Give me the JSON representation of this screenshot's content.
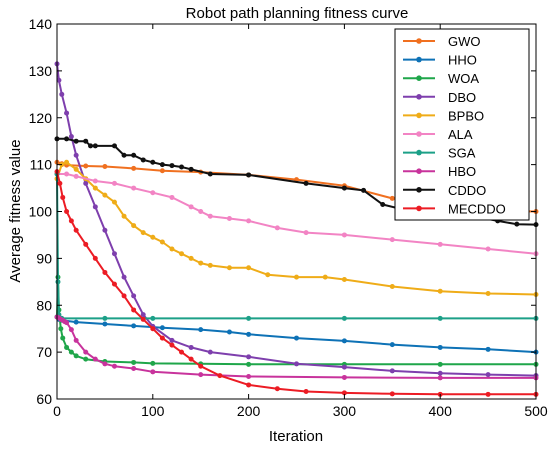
{
  "chart_data": {
    "type": "line",
    "title": "Robot path planning fitness curve",
    "xlabel": "Iteration",
    "ylabel": "Average fitness value",
    "xlim": [
      0,
      500
    ],
    "ylim": [
      60,
      140
    ],
    "xticks": [
      0,
      100,
      200,
      300,
      400,
      500
    ],
    "yticks": [
      60,
      70,
      80,
      90,
      100,
      110,
      120,
      130,
      140
    ],
    "grid": false,
    "legend_position": "top-right",
    "series": [
      {
        "name": "GWO",
        "color": "#f07020",
        "x": [
          0,
          5,
          10,
          30,
          50,
          80,
          110,
          150,
          200,
          250,
          300,
          350,
          400,
          450,
          500
        ],
        "y": [
          110.5,
          110.2,
          109.9,
          109.7,
          109.6,
          109.2,
          108.7,
          108.4,
          107.8,
          106.8,
          105.5,
          102.8,
          101.2,
          100.2,
          100.0
        ]
      },
      {
        "name": "HHO",
        "color": "#0e72b6",
        "x": [
          0,
          2,
          5,
          20,
          50,
          80,
          110,
          150,
          180,
          200,
          250,
          300,
          350,
          400,
          450,
          500
        ],
        "y": [
          77.5,
          77.0,
          76.8,
          76.4,
          76.0,
          75.6,
          75.2,
          74.8,
          74.3,
          73.8,
          73.0,
          72.4,
          71.6,
          71.0,
          70.6,
          70.0
        ]
      },
      {
        "name": "WOA",
        "color": "#1fa64a",
        "x": [
          0,
          1,
          2,
          4,
          6,
          10,
          15,
          20,
          30,
          50,
          80,
          100,
          150,
          200,
          300,
          400,
          500
        ],
        "y": [
          77.5,
          86.0,
          79.0,
          75.0,
          73.0,
          71.0,
          70.0,
          69.2,
          68.5,
          68.0,
          67.8,
          67.6,
          67.5,
          67.4,
          67.4,
          67.4,
          67.4
        ]
      },
      {
        "name": "DBO",
        "color": "#7e3fad",
        "x": [
          0,
          2,
          5,
          10,
          15,
          20,
          30,
          40,
          50,
          60,
          70,
          80,
          90,
          100,
          120,
          140,
          160,
          200,
          250,
          300,
          350,
          400,
          450,
          500
        ],
        "y": [
          131.5,
          128.0,
          125.0,
          121.0,
          116.0,
          112.0,
          106.0,
          101.0,
          96.0,
          91.0,
          86.0,
          82.0,
          78.0,
          75.5,
          72.5,
          71.0,
          70.0,
          69.0,
          67.5,
          66.8,
          66.0,
          65.5,
          65.2,
          65.0
        ]
      },
      {
        "name": "BPBO",
        "color": "#efac18",
        "x": [
          0,
          5,
          10,
          20,
          30,
          40,
          50,
          60,
          70,
          80,
          90,
          100,
          110,
          120,
          130,
          140,
          150,
          160,
          180,
          200,
          220,
          250,
          280,
          300,
          350,
          400,
          450,
          500
        ],
        "y": [
          107.0,
          110.0,
          110.5,
          109.0,
          107.0,
          105.0,
          103.5,
          102.0,
          99.0,
          97.0,
          95.5,
          94.5,
          93.5,
          92.0,
          91.0,
          90.0,
          89.0,
          88.5,
          88.0,
          88.0,
          86.5,
          86.0,
          86.0,
          85.5,
          84.0,
          83.0,
          82.5,
          82.3
        ]
      },
      {
        "name": "ALA",
        "color": "#f284c4",
        "x": [
          0,
          10,
          20,
          40,
          60,
          80,
          100,
          120,
          140,
          150,
          160,
          180,
          200,
          230,
          260,
          300,
          350,
          400,
          450,
          500
        ],
        "y": [
          108.0,
          108.0,
          107.5,
          106.5,
          106.0,
          105.0,
          104.0,
          103.0,
          101.0,
          100.0,
          99.0,
          98.5,
          98.0,
          96.5,
          95.5,
          95.0,
          94.0,
          93.0,
          92.0,
          91.0
        ]
      },
      {
        "name": "SGA",
        "color": "#1ca088",
        "x": [
          0,
          1,
          2,
          3,
          5,
          50,
          100,
          200,
          300,
          400,
          500
        ],
        "y": [
          108.0,
          85.0,
          78.0,
          77.3,
          77.2,
          77.2,
          77.2,
          77.2,
          77.2,
          77.2,
          77.2
        ]
      },
      {
        "name": "HBO",
        "color": "#c8339c",
        "x": [
          0,
          2,
          4,
          6,
          8,
          10,
          15,
          20,
          30,
          40,
          50,
          60,
          80,
          100,
          150,
          200,
          300,
          400,
          500
        ],
        "y": [
          77.5,
          77.3,
          77.0,
          76.8,
          76.5,
          76.3,
          74.8,
          72.5,
          70.0,
          68.5,
          67.5,
          67.0,
          66.5,
          65.8,
          65.2,
          64.8,
          64.6,
          64.5,
          64.5
        ]
      },
      {
        "name": "CDDO",
        "color": "#111111",
        "x": [
          0,
          10,
          20,
          30,
          35,
          40,
          60,
          70,
          80,
          90,
          100,
          110,
          120,
          130,
          140,
          160,
          200,
          260,
          300,
          320,
          340,
          360,
          380,
          400,
          420,
          440,
          460,
          480,
          500
        ],
        "y": [
          115.5,
          115.5,
          115.0,
          115.0,
          114.0,
          114.0,
          114.0,
          112.0,
          112.0,
          111.0,
          110.5,
          110.0,
          109.8,
          109.5,
          109.0,
          108.0,
          107.8,
          106.0,
          105.0,
          104.5,
          101.5,
          100.5,
          100.0,
          100.0,
          99.5,
          98.8,
          98.0,
          97.3,
          97.2
        ]
      },
      {
        "name": "MECDDO",
        "color": "#ec1c24",
        "x": [
          0,
          3,
          6,
          10,
          15,
          20,
          30,
          40,
          50,
          60,
          70,
          80,
          90,
          100,
          110,
          120,
          130,
          140,
          150,
          170,
          200,
          230,
          260,
          300,
          350,
          400,
          450,
          500
        ],
        "y": [
          108.5,
          106.0,
          103.0,
          100.0,
          98.0,
          96.0,
          93.0,
          90.0,
          87.0,
          84.5,
          82.0,
          79.0,
          77.0,
          75.0,
          73.0,
          71.5,
          70.0,
          68.5,
          67.0,
          65.0,
          63.0,
          62.2,
          61.6,
          61.3,
          61.1,
          61.0,
          61.0,
          61.0
        ]
      }
    ]
  }
}
